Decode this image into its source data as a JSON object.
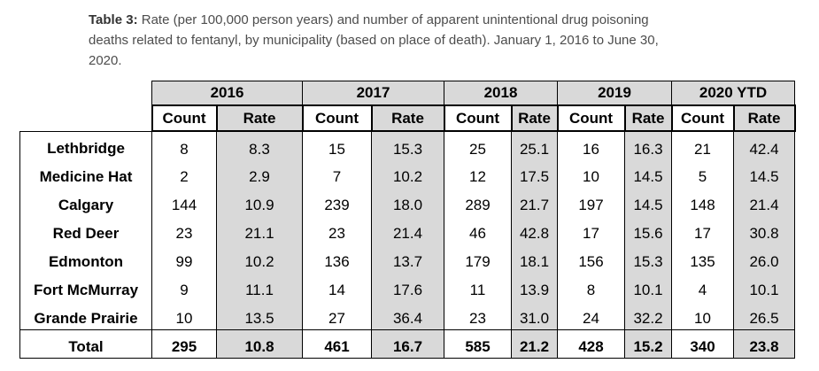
{
  "caption": {
    "label": "Table 3:",
    "line1": "Rate (per 100,000 person years) and number of apparent unintentional drug poisoning",
    "line2": "deaths related to fentanyl, by municipality (based on place of death). January 1, 2016 to June 30,",
    "line3": "2020."
  },
  "table": {
    "years": [
      "2016",
      "2017",
      "2018",
      "2019",
      "2020 YTD"
    ],
    "count_label": "Count",
    "rate_label": "Rate",
    "rows": [
      {
        "name": "Lethbridge",
        "values": [
          "8",
          "8.3",
          "15",
          "15.3",
          "25",
          "25.1",
          "16",
          "16.3",
          "21",
          "42.4"
        ]
      },
      {
        "name": "Medicine Hat",
        "values": [
          "2",
          "2.9",
          "7",
          "10.2",
          "12",
          "17.5",
          "10",
          "14.5",
          "5",
          "14.5"
        ]
      },
      {
        "name": "Calgary",
        "values": [
          "144",
          "10.9",
          "239",
          "18.0",
          "289",
          "21.7",
          "197",
          "14.5",
          "148",
          "21.4"
        ]
      },
      {
        "name": "Red Deer",
        "values": [
          "23",
          "21.1",
          "23",
          "21.4",
          "46",
          "42.8",
          "17",
          "15.6",
          "17",
          "30.8"
        ]
      },
      {
        "name": "Edmonton",
        "values": [
          "99",
          "10.2",
          "136",
          "13.7",
          "179",
          "18.1",
          "156",
          "15.3",
          "135",
          "26.0"
        ]
      },
      {
        "name": "Fort McMurray",
        "values": [
          "9",
          "11.1",
          "14",
          "17.6",
          "11",
          "13.9",
          "8",
          "10.1",
          "4",
          "10.1"
        ]
      },
      {
        "name": "Grande Prairie",
        "values": [
          "10",
          "13.5",
          "27",
          "36.4",
          "23",
          "31.0",
          "24",
          "32.2",
          "10",
          "26.5"
        ]
      }
    ],
    "total": {
      "name": "Total",
      "values": [
        "295",
        "10.8",
        "461",
        "16.7",
        "585",
        "21.2",
        "428",
        "15.2",
        "340",
        "23.8"
      ]
    }
  }
}
